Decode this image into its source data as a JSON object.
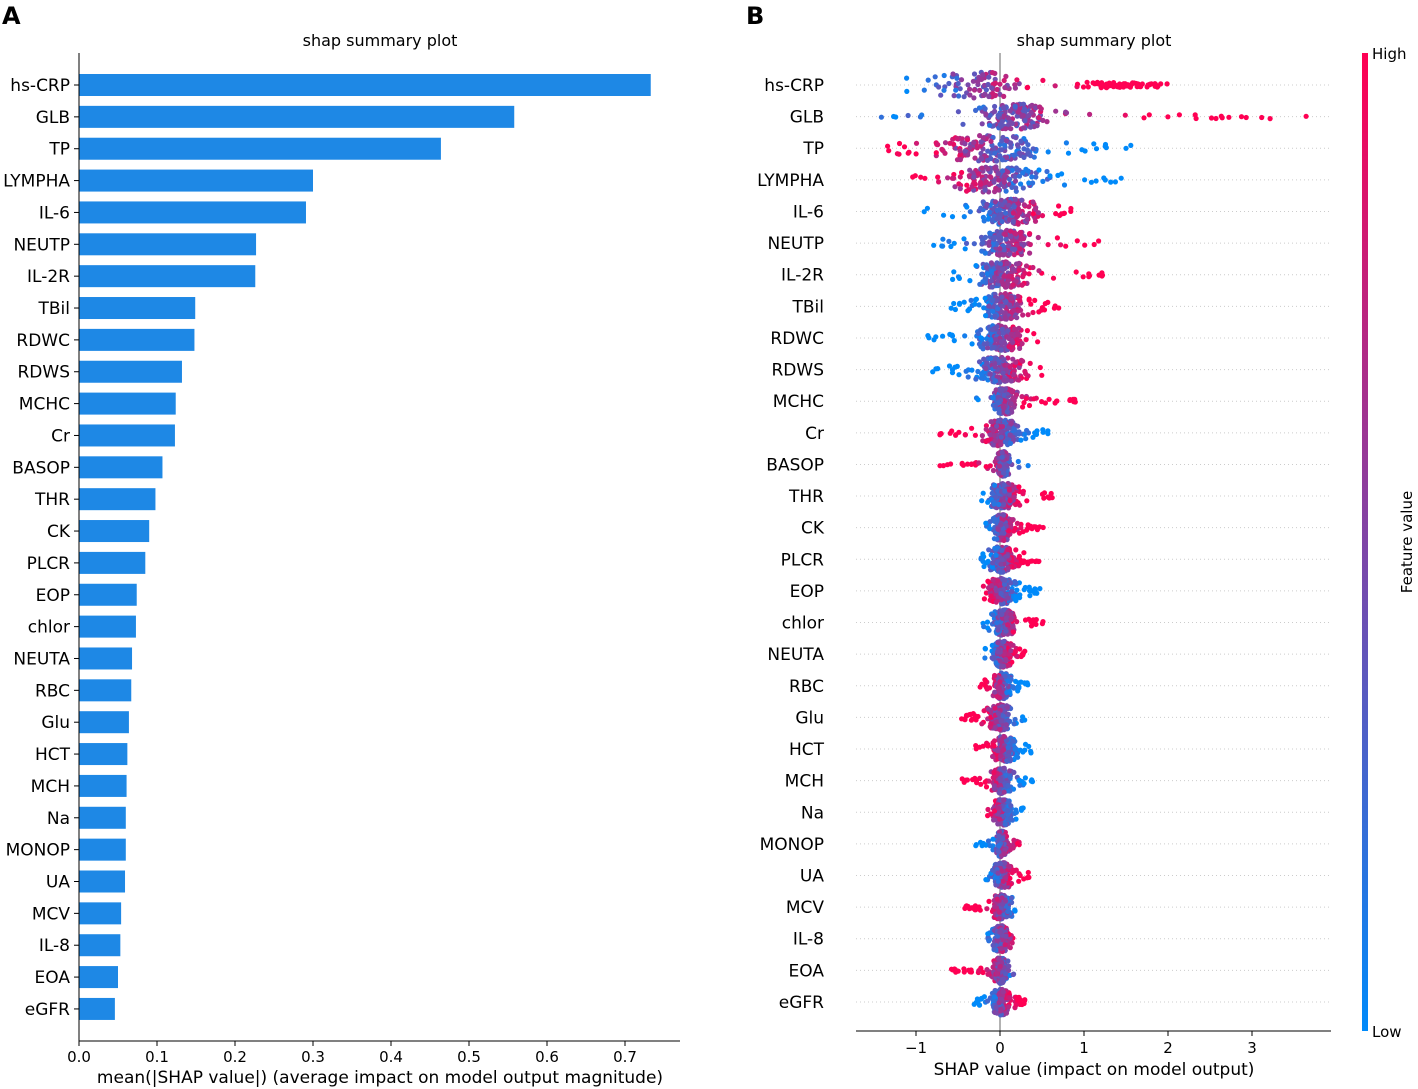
{
  "panel_labels": {
    "a": "A",
    "b": "B"
  },
  "colors": {
    "bar": "#1E88E5",
    "low": "#008AFA",
    "high": "#FF0053",
    "axis": "#000000",
    "zero_line": "#999999",
    "row_line": "#cccccc"
  },
  "chart_data": [
    {
      "type": "bar",
      "orientation": "horizontal",
      "title": "shap summary plot",
      "xlabel": "mean(|SHAP value|) (average impact on model output magnitude)",
      "ylabel": "",
      "xlim": [
        0,
        0.77
      ],
      "xticks": [
        0.0,
        0.1,
        0.2,
        0.3,
        0.4,
        0.5,
        0.6,
        0.7
      ],
      "xtick_labels": [
        "0.0",
        "0.1",
        "0.2",
        "0.3",
        "0.4",
        "0.5",
        "0.6",
        "0.7"
      ],
      "categories": [
        "hs-CRP",
        "GLB",
        "TP",
        "LYMPHA",
        "IL-6",
        "NEUTP",
        "IL-2R",
        "TBil",
        "RDWC",
        "RDWS",
        "MCHC",
        "Cr",
        "BASOP",
        "THR",
        "CK",
        "PLCR",
        "EOP",
        "chlor",
        "NEUTA",
        "RBC",
        "Glu",
        "HCT",
        "MCH",
        "Na",
        "MONOP",
        "UA",
        "MCV",
        "IL-8",
        "EOA",
        "eGFR"
      ],
      "values": [
        0.733,
        0.558,
        0.464,
        0.3,
        0.291,
        0.227,
        0.226,
        0.149,
        0.148,
        0.132,
        0.124,
        0.123,
        0.107,
        0.098,
        0.09,
        0.085,
        0.074,
        0.073,
        0.068,
        0.067,
        0.064,
        0.062,
        0.061,
        0.06,
        0.06,
        0.059,
        0.054,
        0.053,
        0.05,
        0.046
      ]
    },
    {
      "type": "scatter",
      "subtype": "beeswarm",
      "title": "shap summary plot",
      "xlabel": "SHAP value (impact on model output)",
      "ylabel": "",
      "xlim": [
        -1.71,
        3.9
      ],
      "xticks": [
        -1,
        0,
        1,
        2,
        3
      ],
      "xtick_labels": [
        "−1",
        "0",
        "1",
        "2",
        "3"
      ],
      "colorbar": {
        "label": "Feature value",
        "high": "High",
        "low": "Low"
      },
      "features": [
        {
          "name": "hs-CRP",
          "min": -1.15,
          "max": 2.22,
          "core": [
            -0.85,
            0.3
          ],
          "side": "pos",
          "tail_from": 0.6,
          "pos_cluster": 1.5
        },
        {
          "name": "GLB",
          "min": -1.45,
          "max": 3.7,
          "core": [
            -0.3,
            0.6
          ],
          "side": "pos",
          "tail_from": 2.9
        },
        {
          "name": "TP",
          "min": -1.35,
          "max": 1.68,
          "core": [
            -0.8,
            0.5
          ],
          "side": "neg"
        },
        {
          "name": "LYMPHA",
          "min": -1.05,
          "max": 1.45,
          "core": [
            -0.6,
            0.5
          ],
          "side": "neg"
        },
        {
          "name": "IL-6",
          "min": -0.97,
          "max": 0.85,
          "core": [
            -0.3,
            0.5
          ],
          "side": "pos"
        },
        {
          "name": "NEUTP",
          "min": -0.8,
          "max": 1.25,
          "core": [
            -0.3,
            0.4
          ],
          "side": "pos"
        },
        {
          "name": "IL-2R",
          "min": -0.58,
          "max": 1.25,
          "core": [
            -0.3,
            0.35
          ],
          "side": "pos"
        },
        {
          "name": "TBil",
          "min": -0.62,
          "max": 0.71,
          "core": [
            -0.2,
            0.3
          ],
          "side": "pos"
        },
        {
          "name": "RDWC",
          "min": -0.88,
          "max": 0.46,
          "core": [
            -0.3,
            0.3
          ],
          "side": "pos"
        },
        {
          "name": "RDWS",
          "min": -0.84,
          "max": 0.5,
          "core": [
            -0.3,
            0.3
          ],
          "side": "pos"
        },
        {
          "name": "MCHC",
          "min": -0.28,
          "max": 0.9,
          "core": [
            -0.1,
            0.2
          ],
          "side": "pos"
        },
        {
          "name": "Cr",
          "min": -0.72,
          "max": 0.6,
          "core": [
            -0.2,
            0.25
          ],
          "side": "neg"
        },
        {
          "name": "BASOP",
          "min": -0.72,
          "max": 0.37,
          "core": [
            -0.05,
            0.12
          ],
          "side": "neg"
        },
        {
          "name": "THR",
          "min": -0.22,
          "max": 0.63,
          "core": [
            -0.15,
            0.25
          ],
          "side": "pos"
        },
        {
          "name": "CK",
          "min": -0.18,
          "max": 0.53,
          "core": [
            -0.1,
            0.15
          ],
          "side": "pos"
        },
        {
          "name": "PLCR",
          "min": -0.24,
          "max": 0.47,
          "core": [
            -0.15,
            0.2
          ],
          "side": "pos"
        },
        {
          "name": "EOP",
          "min": -0.2,
          "max": 0.48,
          "core": [
            -0.15,
            0.2
          ],
          "side": "neg"
        },
        {
          "name": "chlor",
          "min": -0.22,
          "max": 0.52,
          "core": [
            -0.1,
            0.2
          ],
          "side": "pos"
        },
        {
          "name": "NEUTA",
          "min": -0.2,
          "max": 0.31,
          "core": [
            -0.1,
            0.15
          ],
          "side": "pos"
        },
        {
          "name": "RBC",
          "min": -0.25,
          "max": 0.35,
          "core": [
            -0.1,
            0.15
          ],
          "side": "neg"
        },
        {
          "name": "Glu",
          "min": -0.48,
          "max": 0.3,
          "core": [
            -0.15,
            0.15
          ],
          "side": "neg"
        },
        {
          "name": "HCT",
          "min": -0.3,
          "max": 0.37,
          "core": [
            -0.1,
            0.2
          ],
          "side": "neg"
        },
        {
          "name": "MCH",
          "min": -0.45,
          "max": 0.39,
          "core": [
            -0.1,
            0.15
          ],
          "side": "neg"
        },
        {
          "name": "Na",
          "min": -0.15,
          "max": 0.28,
          "core": [
            -0.1,
            0.15
          ],
          "side": "neg"
        },
        {
          "name": "MONOP",
          "min": -0.29,
          "max": 0.24,
          "core": [
            -0.05,
            0.1
          ],
          "side": "pos"
        },
        {
          "name": "UA",
          "min": -0.17,
          "max": 0.35,
          "core": [
            -0.1,
            0.15
          ],
          "side": "pos"
        },
        {
          "name": "MCV",
          "min": -0.42,
          "max": 0.22,
          "core": [
            -0.1,
            0.15
          ],
          "side": "neg"
        },
        {
          "name": "IL-8",
          "min": -0.15,
          "max": 0.16,
          "core": [
            -0.1,
            0.12
          ],
          "side": "pos"
        },
        {
          "name": "EOA",
          "min": -0.58,
          "max": 0.17,
          "core": [
            -0.08,
            0.1
          ],
          "side": "neg"
        },
        {
          "name": "eGFR",
          "min": -0.32,
          "max": 0.3,
          "core": [
            -0.1,
            0.12
          ],
          "side": "pos"
        }
      ]
    }
  ]
}
